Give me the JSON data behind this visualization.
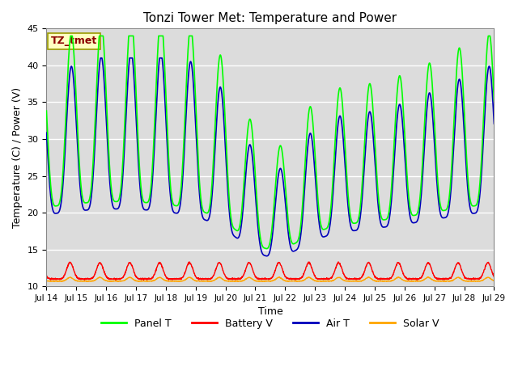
{
  "title": "Tonzi Tower Met: Temperature and Power",
  "xlabel": "Time",
  "ylabel": "Temperature (C) / Power (V)",
  "ylim": [
    10,
    45
  ],
  "xlim": [
    0,
    15
  ],
  "x_tick_labels": [
    "Jul 14",
    "Jul 15",
    "Jul 16",
    "Jul 17",
    "Jul 18",
    "Jul 19",
    "Jul 20",
    "Jul 21",
    "Jul 22",
    "Jul 23",
    "Jul 24",
    "Jul 25",
    "Jul 26",
    "Jul 27",
    "Jul 28",
    "Jul 29"
  ],
  "colors": {
    "panel_t": "#00FF00",
    "battery_v": "#FF0000",
    "air_t": "#0000BB",
    "solar_v": "#FFA500"
  },
  "annotation_text": "TZ_tmet",
  "annotation_color": "#8B0000",
  "annotation_bg": "#FFFFC0",
  "legend_labels": [
    "Panel T",
    "Battery V",
    "Air T",
    "Solar V"
  ],
  "bg_color": "#DCDCDC",
  "yticks": [
    10,
    15,
    20,
    25,
    30,
    35,
    40,
    45
  ],
  "title_fontsize": 11
}
